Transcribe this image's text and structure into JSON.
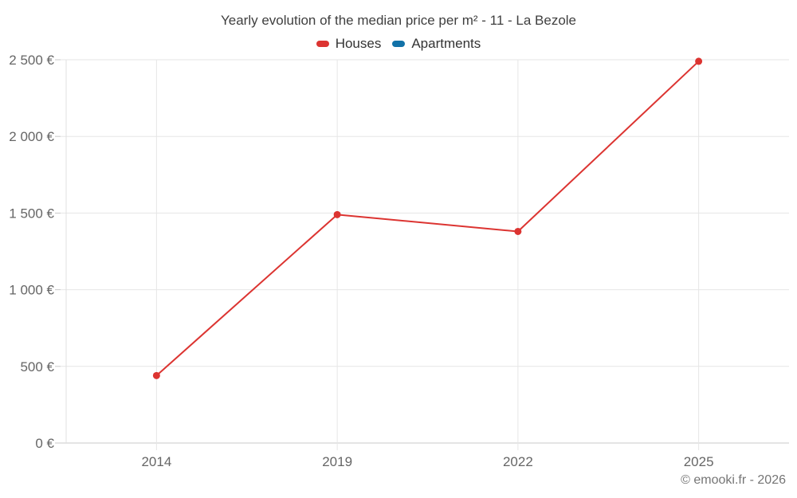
{
  "title": "Yearly evolution of the median price per m² - 11 - La Bezole",
  "legend": {
    "items": [
      {
        "label": "Houses",
        "color": "#dc3431"
      },
      {
        "label": "Apartments",
        "color": "#1272a8"
      }
    ]
  },
  "footer": {
    "copyright": "© emooki.fr - 2026"
  },
  "colors": {
    "gridline": "#e6e6e6",
    "axis_line": "#c9c9c9",
    "left_axis_line": "#e0e0e0",
    "tick_label": "#666666",
    "title_text": "#3f3f3f",
    "legend_text": "#333333",
    "copyright_text": "#757575"
  },
  "chart_data": {
    "type": "line",
    "title": "Yearly evolution of the median price per m² - 11 - La Bezole",
    "categories": [
      "2014",
      "2019",
      "2022",
      "2025"
    ],
    "series": [
      {
        "name": "Houses",
        "color": "#dc3431",
        "values": [
          440,
          1490,
          1380,
          2490
        ]
      },
      {
        "name": "Apartments",
        "color": "#1272a8",
        "values": []
      }
    ],
    "xlabel": "",
    "ylabel": "",
    "ylim": [
      0,
      2500
    ],
    "ytick_interval": 500,
    "ytick_labels": [
      "0 €",
      "500 €",
      "1 000 €",
      "1 500 €",
      "2 000 €",
      "2 500 €"
    ],
    "grid": true,
    "legend_position": "top"
  }
}
